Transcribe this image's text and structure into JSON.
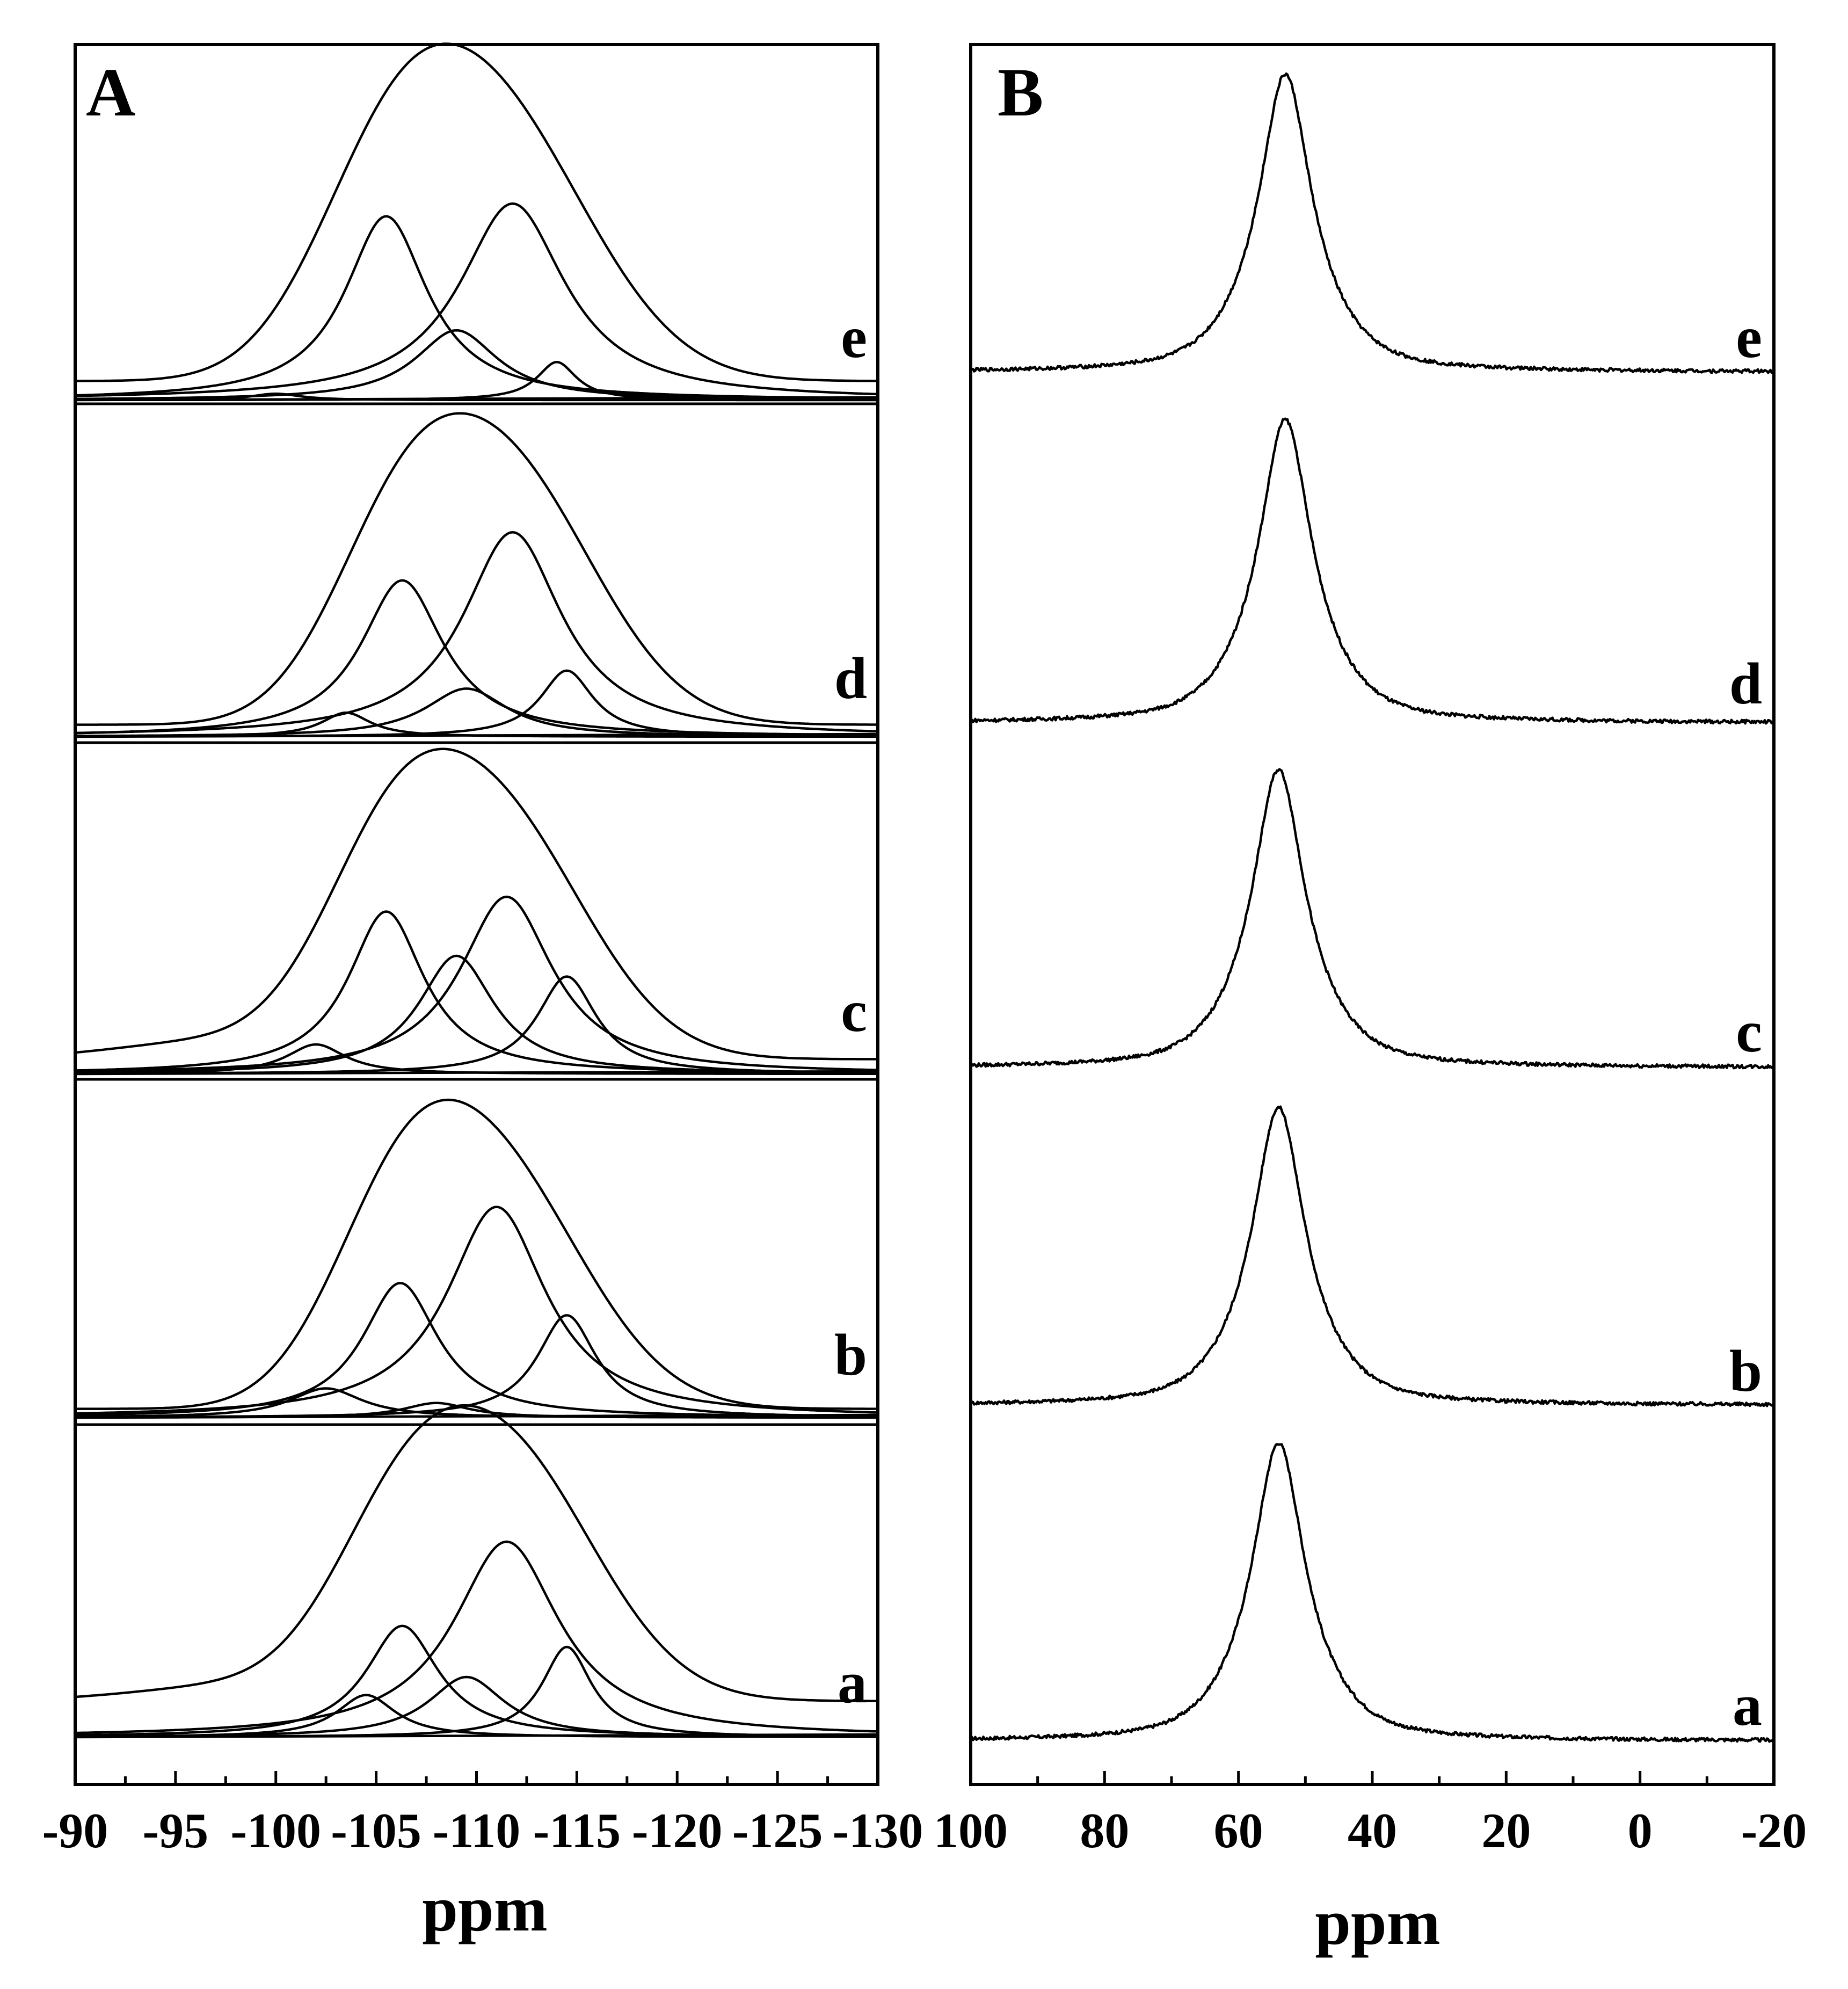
{
  "chart_data": [
    {
      "panel": "A",
      "type": "line",
      "xlabel": "ppm",
      "xlim": [
        -90,
        -130
      ],
      "xticks": [
        -90,
        -95,
        -100,
        -105,
        -110,
        -115,
        -120,
        -125,
        -130
      ],
      "xtick_labels": [
        "-90",
        "-95",
        "-100",
        "-105",
        "-110",
        "-115",
        "-120",
        "-125",
        "-130"
      ],
      "series": [
        {
          "name": "a",
          "envelope": {
            "baseline": 0.12,
            "peaks": [
              {
                "center": -106.0,
                "height": 0.42,
                "width": 3.5
              },
              {
                "center": -111.5,
                "height": 0.8,
                "width": 4.5
              },
              {
                "center": -98.0,
                "height": 0.05,
                "width": 5.0
              }
            ]
          },
          "components": [
            {
              "center": -104.5,
              "height": 0.14,
              "width": 1.8
            },
            {
              "center": -106.3,
              "height": 0.37,
              "width": 2.2
            },
            {
              "center": -109.5,
              "height": 0.2,
              "width": 2.3
            },
            {
              "center": -111.5,
              "height": 0.65,
              "width": 3.2
            },
            {
              "center": -114.5,
              "height": 0.3,
              "width": 1.5
            }
          ]
        },
        {
          "name": "b",
          "envelope": {
            "baseline": 0.03,
            "peaks": [
              {
                "center": -106.0,
                "height": 0.5,
                "width": 3.5
              },
              {
                "center": -111.0,
                "height": 0.78,
                "width": 4.5
              }
            ]
          },
          "components": [
            {
              "center": -102.5,
              "height": 0.1,
              "width": 2.2
            },
            {
              "center": -106.2,
              "height": 0.46,
              "width": 2.3
            },
            {
              "center": -108.0,
              "height": 0.05,
              "width": 2.0
            },
            {
              "center": -111.0,
              "height": 0.72,
              "width": 3.0
            },
            {
              "center": -114.5,
              "height": 0.35,
              "width": 1.8
            }
          ]
        },
        {
          "name": "c",
          "envelope": {
            "baseline": 0.05,
            "peaks": [
              {
                "center": -105.5,
                "height": 0.52,
                "width": 3.5
              },
              {
                "center": -111.0,
                "height": 0.8,
                "width": 4.5
              },
              {
                "center": -97.0,
                "height": 0.06,
                "width": 5.0
              }
            ]
          },
          "components": [
            {
              "center": -102.0,
              "height": 0.1,
              "width": 1.8
            },
            {
              "center": -105.5,
              "height": 0.55,
              "width": 2.3
            },
            {
              "center": -109.0,
              "height": 0.4,
              "width": 2.3
            },
            {
              "center": -111.5,
              "height": 0.6,
              "width": 2.8
            },
            {
              "center": -114.5,
              "height": 0.33,
              "width": 1.8
            }
          ]
        },
        {
          "name": "d",
          "envelope": {
            "baseline": 0.04,
            "peaks": [
              {
                "center": -106.0,
                "height": 0.48,
                "width": 3.5
              },
              {
                "center": -111.5,
                "height": 0.82,
                "width": 4.5
              }
            ]
          },
          "components": [
            {
              "center": -103.5,
              "height": 0.08,
              "width": 1.5
            },
            {
              "center": -106.3,
              "height": 0.52,
              "width": 2.5
            },
            {
              "center": -109.5,
              "height": 0.16,
              "width": 2.5
            },
            {
              "center": -111.8,
              "height": 0.68,
              "width": 3.0
            },
            {
              "center": -114.5,
              "height": 0.22,
              "width": 1.6
            }
          ]
        },
        {
          "name": "e",
          "envelope": {
            "baseline": 0.06,
            "peaks": [
              {
                "center": -105.5,
                "height": 0.5,
                "width": 3.8
              },
              {
                "center": -111.0,
                "height": 0.8,
                "width": 4.8
              }
            ]
          },
          "components": [
            {
              "center": -100.0,
              "height": 0.02,
              "width": 1.5
            },
            {
              "center": -105.5,
              "height": 0.58,
              "width": 2.5
            },
            {
              "center": -109.0,
              "height": 0.22,
              "width": 2.5
            },
            {
              "center": -111.8,
              "height": 0.62,
              "width": 3.2
            },
            {
              "center": -114.0,
              "height": 0.12,
              "width": 1.2
            }
          ]
        }
      ]
    },
    {
      "panel": "B",
      "type": "line",
      "xlabel": "ppm",
      "xlim": [
        100,
        -20
      ],
      "xticks": [
        100,
        80,
        60,
        40,
        20,
        0,
        -20
      ],
      "xtick_labels": [
        "100",
        "80",
        "60",
        "40",
        "20",
        "0",
        "-20"
      ],
      "series": [
        {
          "name": "a",
          "peak": {
            "center": 54,
            "height": 1.0,
            "width": 4.5
          }
        },
        {
          "name": "b",
          "peak": {
            "center": 54,
            "height": 1.0,
            "width": 4.5
          }
        },
        {
          "name": "c",
          "peak": {
            "center": 54,
            "height": 1.0,
            "width": 4.5
          }
        },
        {
          "name": "d",
          "peak": {
            "center": 53,
            "height": 1.0,
            "width": 4.5
          }
        },
        {
          "name": "e",
          "peak": {
            "center": 53,
            "height": 1.0,
            "width": 4.5
          }
        }
      ]
    }
  ]
}
